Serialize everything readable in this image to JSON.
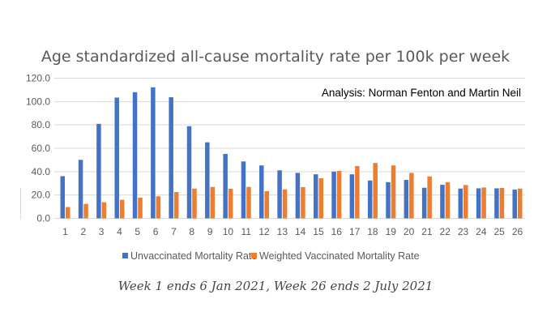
{
  "chart_data": {
    "type": "bar",
    "title": "Age standardized all-cause mortality rate per 100k per week",
    "annotation": "Analysis: Norman Fenton and Martin Neil",
    "xlabel": "",
    "ylabel": "",
    "ylim": [
      0,
      120
    ],
    "yticks": [
      0,
      20,
      40,
      60,
      80,
      100,
      120
    ],
    "ytick_labels": [
      "0.0",
      "20.0",
      "40.0",
      "60.0",
      "80.0",
      "100.0",
      "120.0"
    ],
    "grid": true,
    "legend_position": "bottom",
    "categories": [
      "1",
      "2",
      "3",
      "4",
      "5",
      "6",
      "7",
      "8",
      "9",
      "10",
      "11",
      "12",
      "13",
      "14",
      "15",
      "16",
      "17",
      "18",
      "19",
      "20",
      "21",
      "22",
      "23",
      "24",
      "25",
      "26"
    ],
    "series": [
      {
        "name": "Unvaccinated Mortality Rate",
        "color": "#4472C4",
        "values": [
          36.1,
          50.1,
          80.9,
          103.4,
          108.0,
          112.2,
          103.7,
          78.9,
          65.1,
          55.2,
          48.7,
          45.3,
          41.1,
          38.9,
          37.7,
          40.0,
          37.7,
          32.4,
          31.0,
          32.9,
          26.2,
          28.7,
          25.5,
          25.7,
          25.7,
          24.6
        ]
      },
      {
        "name": "Weighted Vaccinated Mortality Rate",
        "color": "#ED7D31",
        "values": [
          9.7,
          12.4,
          13.8,
          15.9,
          17.7,
          18.9,
          22.5,
          25.5,
          26.9,
          25.3,
          26.9,
          23.2,
          24.8,
          26.7,
          34.3,
          40.7,
          44.8,
          47.4,
          45.3,
          38.9,
          35.9,
          31.0,
          28.5,
          26.4,
          26.0,
          25.5
        ]
      }
    ]
  },
  "caption": "Week 1 ends 6 Jan 2021, Week 26 ends 2 July 2021"
}
